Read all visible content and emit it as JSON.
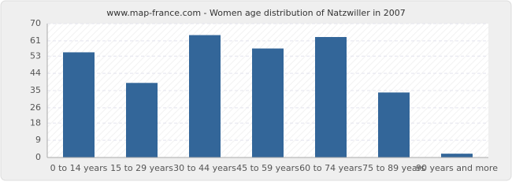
{
  "chart_data": {
    "type": "bar",
    "title": "www.map-france.com - Women age distribution of Natzwiller in 2007",
    "categories": [
      "0 to 14 years",
      "15 to 29 years",
      "30 to 44 years",
      "45 to 59 years",
      "60 to 74 years",
      "75 to 89 years",
      "90 years and more"
    ],
    "values": [
      55,
      39,
      64,
      57,
      63,
      34,
      2
    ],
    "color": "#336699",
    "ylim": [
      0,
      70
    ],
    "yticks": [
      0,
      9,
      18,
      26,
      35,
      44,
      53,
      61,
      70
    ],
    "grid": true
  }
}
